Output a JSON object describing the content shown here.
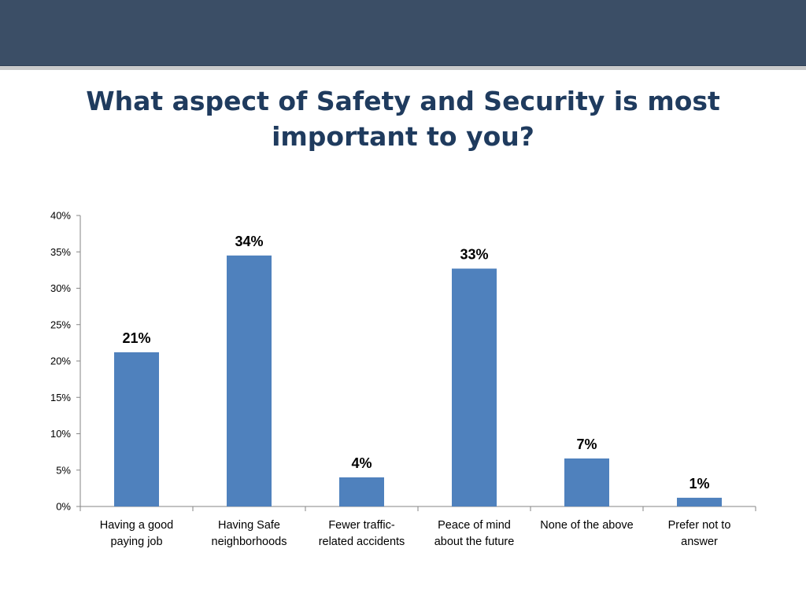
{
  "slide": {
    "title": "What aspect of Safety and Security is most important to you?"
  },
  "colors": {
    "header_band": "#3b4e66",
    "bar": "#4f81bd",
    "title": "#1f3b5e"
  },
  "chart_data": {
    "type": "bar",
    "title": "What aspect of Safety and Security is most important to you?",
    "categories": [
      [
        "Having a good",
        "paying job"
      ],
      [
        "Having Safe",
        "neighborhoods"
      ],
      [
        "Fewer traffic-",
        "related accidents"
      ],
      [
        "Peace of mind",
        "about the future"
      ],
      [
        "None of the above"
      ],
      [
        "Prefer not to",
        "answer"
      ]
    ],
    "values": [
      21.2,
      34.5,
      4.0,
      32.7,
      6.6,
      1.2
    ],
    "data_labels": [
      "21%",
      "34%",
      "4%",
      "33%",
      "7%",
      "1%"
    ],
    "ylim": [
      0,
      40
    ],
    "yticks": [
      0,
      5,
      10,
      15,
      20,
      25,
      30,
      35,
      40
    ],
    "ytick_labels": [
      "0%",
      "5%",
      "10%",
      "15%",
      "20%",
      "25%",
      "30%",
      "35%",
      "40%"
    ],
    "grid": false,
    "legend": "none"
  }
}
